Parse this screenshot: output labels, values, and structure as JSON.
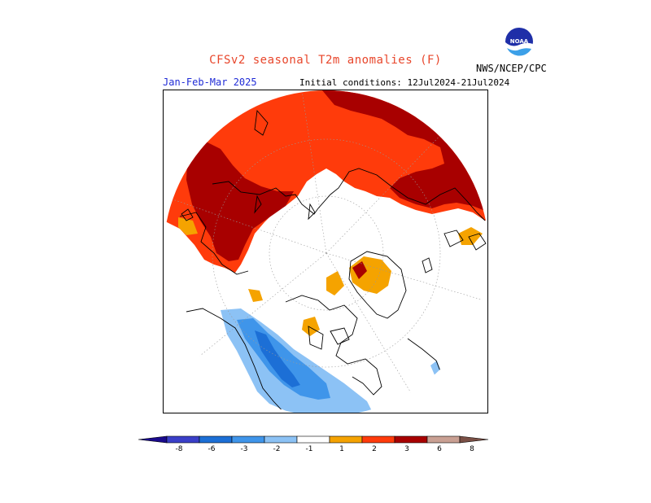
{
  "header": {
    "title": "CFSv2 seasonal T2m anomalies (F)",
    "agency": "NWS/NCEP/CPC",
    "period": "Jan-Feb-Mar 2025",
    "initial_conditions": "Initial conditions: 12Jul2024-21Jul2024"
  },
  "logo": {
    "text": "NOAA",
    "icon": "noaa-logo"
  },
  "colorbar": {
    "labels": [
      "-8",
      "-6",
      "-3",
      "-2",
      "-1",
      "1",
      "2",
      "3",
      "6",
      "8"
    ],
    "colors": [
      "#1a0a8c",
      "#3a3fc8",
      "#1c6fd6",
      "#3f95ea",
      "#8cc2f5",
      "#ffffff",
      "#f5a300",
      "#ff3b0b",
      "#a80000",
      "#c9a093",
      "#7a4f45"
    ]
  },
  "map": {
    "projection": "north-polar-stereographic",
    "warm_colors": {
      "1to2": "#f5a300",
      "2to3": "#ff3b0b",
      "3to6": "#a80000"
    },
    "cold_colors": {
      "-1to-2": "#8cc2f5",
      "-2to-3": "#3f95ea",
      "-3to-6": "#1c6fd6"
    }
  }
}
